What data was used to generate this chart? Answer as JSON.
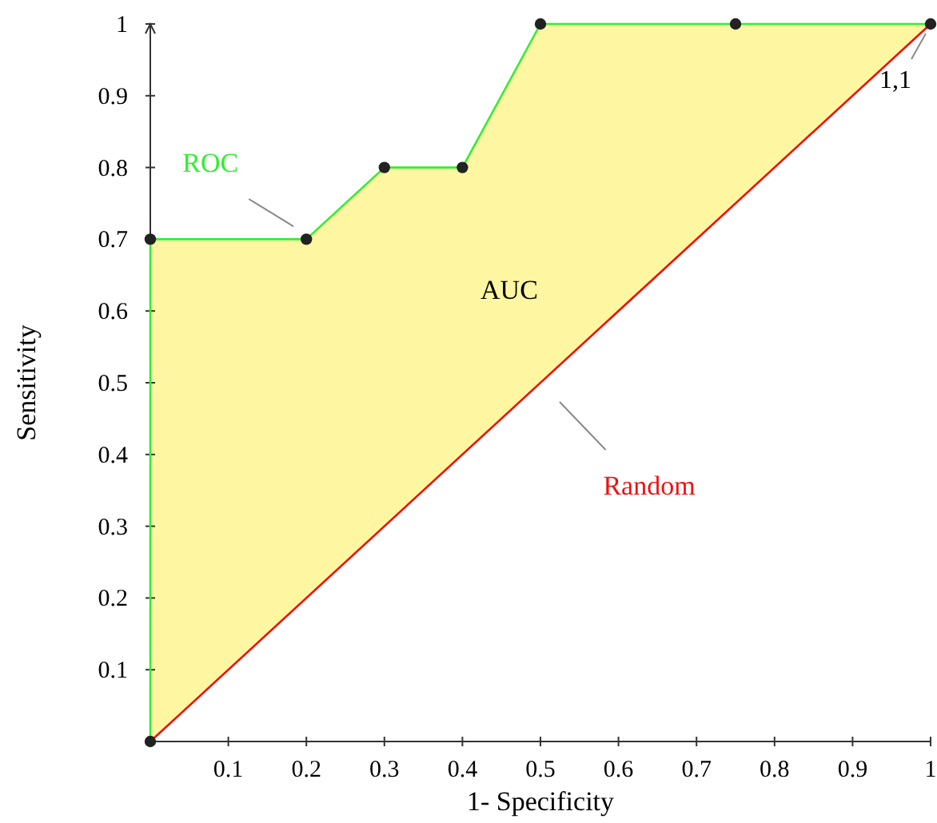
{
  "chart_data": {
    "type": "line",
    "xlabel": "1- Specificity",
    "ylabel": "Sensitivity",
    "xlim": [
      0,
      1
    ],
    "ylim": [
      0,
      1
    ],
    "xticks": [
      0.1,
      0.2,
      0.3,
      0.4,
      0.5,
      0.6,
      0.7,
      0.8,
      0.9,
      1
    ],
    "yticks": [
      0.1,
      0.2,
      0.3,
      0.4,
      0.5,
      0.6,
      0.7,
      0.8,
      0.9,
      1
    ],
    "grid": false,
    "series": [
      {
        "name": "ROC",
        "color": "#33ee33",
        "marker": "circle",
        "x": [
          0,
          0,
          0.2,
          0.3,
          0.4,
          0.5,
          0.75,
          1
        ],
        "values": [
          0,
          0.7,
          0.7,
          0.8,
          0.8,
          1,
          1,
          1
        ],
        "lower": [
          0,
          0,
          0.2,
          0.3,
          0.4,
          0.5,
          0.75,
          1
        ],
        "upper": [
          0,
          0.7,
          0.7,
          0.8,
          0.8,
          1,
          1,
          1
        ]
      },
      {
        "name": "Random",
        "color": "#ee1111",
        "marker": "none",
        "x": [
          0,
          1
        ],
        "values": [
          0,
          1
        ]
      }
    ],
    "annotations": [
      "AUC",
      {
        "text": "1,1",
        "x": 1,
        "y": 1
      }
    ]
  }
}
